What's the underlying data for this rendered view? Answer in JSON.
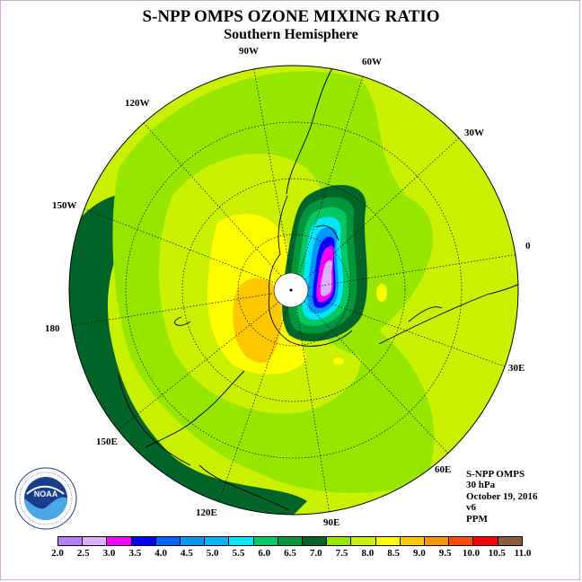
{
  "title": "S-NPP OMPS OZONE MIXING RATIO",
  "subtitle": "Southern Hemisphere",
  "longitude_labels": [
    {
      "id": "90w",
      "text": "90W"
    },
    {
      "id": "60w",
      "text": "60W"
    },
    {
      "id": "30w",
      "text": "30W"
    },
    {
      "id": "0",
      "text": "0"
    },
    {
      "id": "30e",
      "text": "30E"
    },
    {
      "id": "60e",
      "text": "60E"
    },
    {
      "id": "90e",
      "text": "90E"
    },
    {
      "id": "120e",
      "text": "120E"
    },
    {
      "id": "150e",
      "text": "150E"
    },
    {
      "id": "180",
      "text": "180"
    },
    {
      "id": "150w",
      "text": "150W"
    },
    {
      "id": "120w",
      "text": "120W"
    }
  ],
  "info": {
    "instrument": "S-NPP OMPS",
    "level": "30 hPa",
    "date": "October 19, 2016",
    "version": "v6",
    "units": "PPM"
  },
  "logo": {
    "text": "NOAA",
    "icon": "noaa-logo"
  },
  "colorbar": {
    "ticks": [
      "2.0",
      "2.5",
      "3.0",
      "3.5",
      "4.0",
      "4.5",
      "5.0",
      "5.5",
      "6.0",
      "6.5",
      "7.0",
      "7.5",
      "8.0",
      "8.5",
      "9.0",
      "9.5",
      "10.0",
      "10.5",
      "11.0"
    ],
    "colors": [
      "#b57fff",
      "#dcb0ff",
      "#ff00ff",
      "#0000ff",
      "#0064ff",
      "#0096ff",
      "#00b4ff",
      "#00e6ff",
      "#00c864",
      "#00963c",
      "#006428",
      "#96e600",
      "#c8f000",
      "#ffff00",
      "#ffc800",
      "#ff9600",
      "#ff5000",
      "#ff0000",
      "#8c5a3c"
    ]
  },
  "palette": {
    "dark_green": "#006428",
    "green": "#96e600",
    "yellow_green": "#c8f000",
    "yellow": "#ffff00",
    "light_orange": "#ffc800",
    "polar_mask": "#ffffff"
  }
}
